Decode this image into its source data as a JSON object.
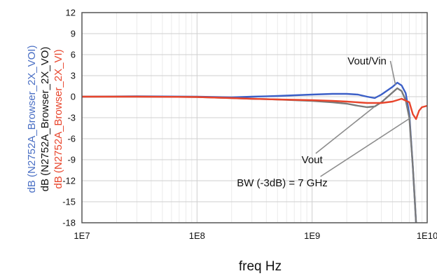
{
  "chart_data": {
    "type": "line",
    "title": "",
    "xlabel": "freq Hz",
    "xscale": "log",
    "xlim": [
      10000000,
      10000000000
    ],
    "x_tick_labels": [
      "1E7",
      "1E8",
      "1E9",
      "1E10"
    ],
    "x_tick_values": [
      10000000,
      100000000,
      1000000000,
      10000000000
    ],
    "ylim": [
      -18,
      12
    ],
    "y_ticks": [
      12,
      9,
      6,
      3,
      0,
      -3,
      -6,
      -9,
      -12,
      -15,
      -18
    ],
    "grid": true,
    "ylabels": [
      {
        "text": "dB (N2752A_Browser_2X_VOI)",
        "color": "#4a6fc4"
      },
      {
        "text": "dB (N2752A_Browser_2X_VO)",
        "color": "#111111"
      },
      {
        "text": "dB (N2752A_Browser_2X_VI)",
        "color": "#e8452c"
      }
    ],
    "series": [
      {
        "name": "dB (N2752A_Browser_2X_VOI)",
        "color": "#3b5fc7",
        "x": [
          10000000,
          30000000,
          100000000,
          200000000,
          300000000,
          500000000,
          1000000000,
          1500000000,
          2000000000,
          2500000000,
          3000000000,
          3500000000,
          4000000000,
          5000000000,
          5500000000,
          6000000000,
          6500000000,
          7000000000,
          7500000000,
          8000000000
        ],
        "y": [
          0.0,
          0.05,
          0.0,
          -0.1,
          0.0,
          0.1,
          0.3,
          0.4,
          0.4,
          0.3,
          0.0,
          -0.2,
          0.3,
          1.4,
          2.0,
          1.6,
          0.5,
          -2.5,
          -10,
          -18
        ]
      },
      {
        "name": "dB (N2752A_Browser_2X_VO)",
        "color": "#7a7a7a",
        "x": [
          10000000,
          30000000,
          100000000,
          200000000,
          300000000,
          500000000,
          1000000000,
          1500000000,
          2000000000,
          2500000000,
          3000000000,
          3500000000,
          4000000000,
          5000000000,
          5500000000,
          6000000000,
          6500000000,
          7000000000,
          7500000000,
          8000000000
        ],
        "y": [
          0.0,
          0.0,
          -0.05,
          -0.2,
          -0.3,
          -0.4,
          -0.6,
          -0.8,
          -1.0,
          -1.3,
          -1.5,
          -1.4,
          -0.8,
          0.6,
          1.2,
          0.8,
          -0.5,
          -3.0,
          -10,
          -18
        ]
      },
      {
        "name": "dB (N2752A_Browser_2X_VI)",
        "color": "#e8452c",
        "x": [
          10000000,
          30000000,
          100000000,
          200000000,
          300000000,
          500000000,
          1000000000,
          1500000000,
          2000000000,
          3000000000,
          4000000000,
          5000000000,
          6000000000,
          7000000000,
          7500000000,
          8000000000,
          8500000000,
          9000000000,
          10000000000
        ],
        "y": [
          0.0,
          0.0,
          -0.05,
          -0.2,
          -0.3,
          -0.4,
          -0.5,
          -0.6,
          -0.7,
          -0.9,
          -0.9,
          -0.7,
          -0.3,
          -0.8,
          -2.5,
          -3.2,
          -2.0,
          -1.5,
          -1.3
        ]
      }
    ],
    "annotations": [
      {
        "text": "Vout/Vin",
        "x": 3000000000,
        "y": 4.6,
        "arrow_to_x": 5300000000,
        "arrow_to_y": 1.7
      },
      {
        "text": "Vout",
        "x": 1000000000,
        "y": -9.5,
        "arrow_to_x": 3500000000,
        "arrow_to_y": -1.4
      },
      {
        "text": "BW (-3dB) = 7 GHz",
        "x": 550000000,
        "y": -12.8,
        "arrow_to_x": 7200000000,
        "arrow_to_y": -3.0
      }
    ]
  }
}
